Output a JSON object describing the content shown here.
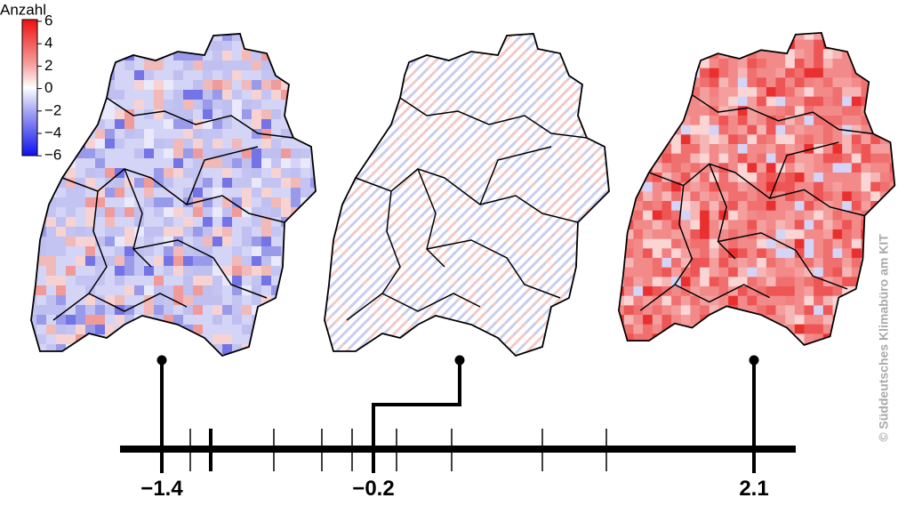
{
  "legend": {
    "title": "Anzahl",
    "ticks": [
      "6",
      "4",
      "2",
      "0",
      "−2",
      "−4",
      "−6"
    ]
  },
  "maps": [
    {
      "label": "−1.4"
    },
    {
      "label": "−0.2"
    },
    {
      "label": "2.1"
    }
  ],
  "credit": "© Süddeutsches Klimabüro am KIT"
}
